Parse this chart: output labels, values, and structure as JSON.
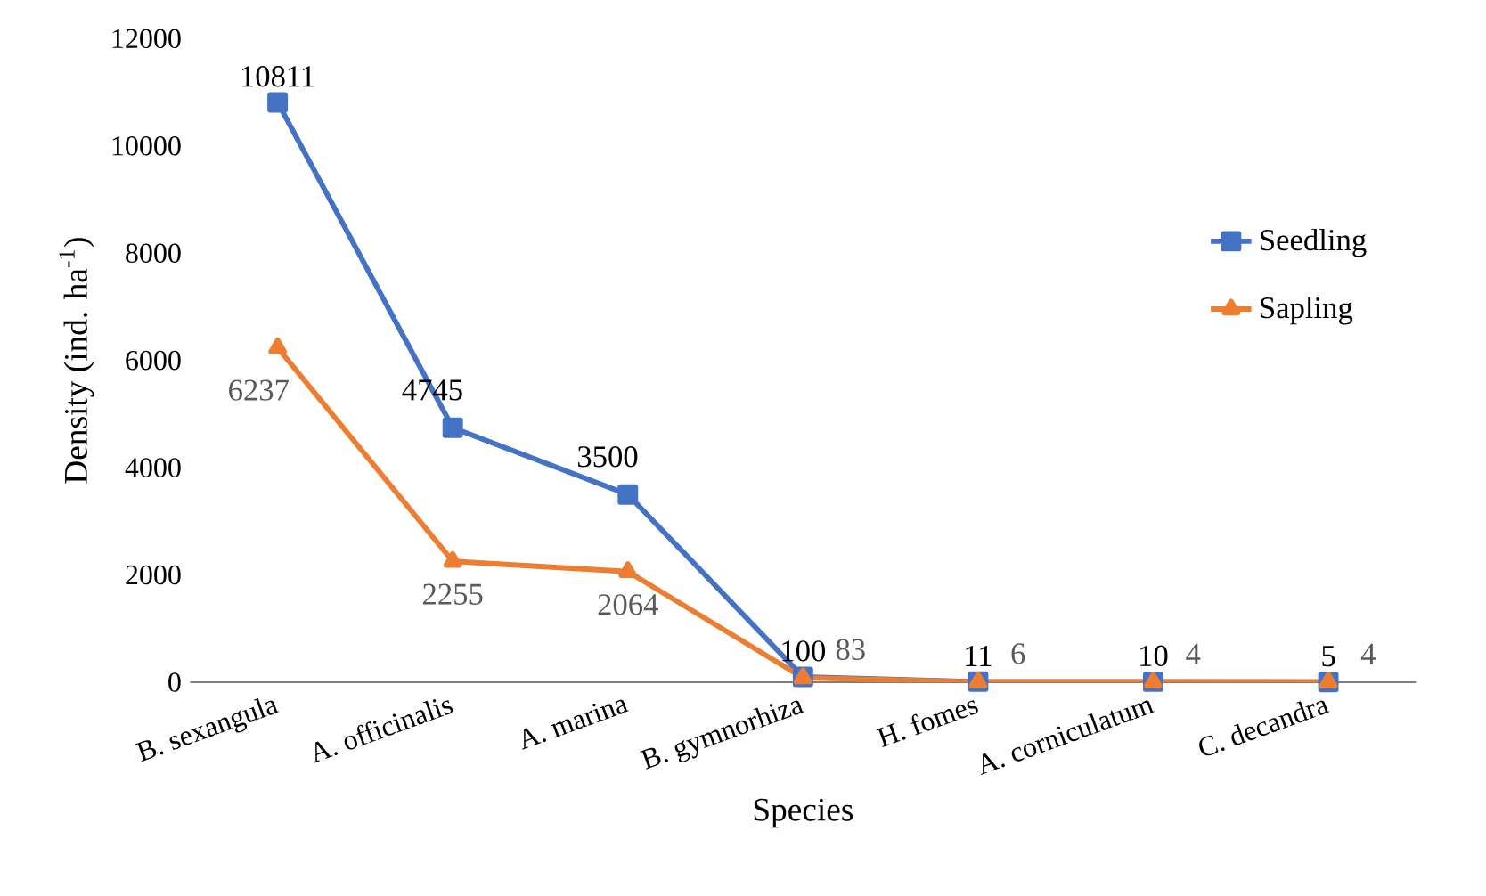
{
  "chart_data": {
    "type": "line",
    "xlabel": "Species",
    "ylabel": "Density (ind. ha$^{-1}$)",
    "categories": [
      "B. sexangula",
      "A. officinalis",
      "A. marina",
      "B. gymnorhiza",
      "H. fomes",
      "A. corniculatum",
      "C. decandra"
    ],
    "series": [
      {
        "name": "Seedling",
        "color": "#4472c4",
        "marker": "square",
        "values": [
          10811,
          4745,
          3500,
          100,
          11,
          10,
          5
        ]
      },
      {
        "name": "Sapling",
        "color": "#ed7d31",
        "marker": "triangle",
        "values": [
          6237,
          2255,
          2064,
          83,
          6,
          4,
          4
        ]
      }
    ],
    "ylim": [
      0,
      12000
    ],
    "yticks": [
      0,
      2000,
      4000,
      6000,
      8000,
      10000,
      12000
    ],
    "data_labels": true,
    "legend": "right",
    "grid": false
  }
}
